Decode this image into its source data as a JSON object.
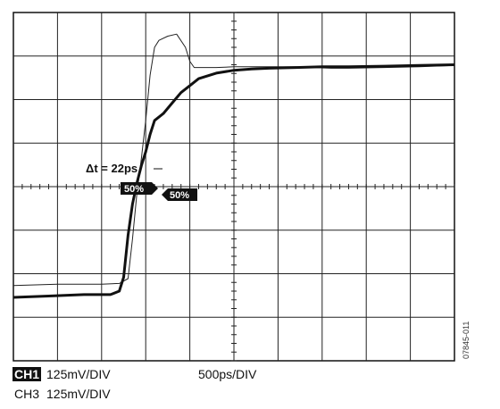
{
  "chart_data": {
    "type": "line",
    "title": "",
    "xlabel": "",
    "ylabel": "",
    "divisions": {
      "x": 10,
      "y": 8
    },
    "grid": true,
    "x_unit": "ps",
    "y_unit": "mV",
    "xlim": [
      0,
      5000
    ],
    "ylim": [
      -500,
      500
    ],
    "series": [
      {
        "name": "CH3",
        "style": "thin",
        "color": "#222222",
        "points": [
          [
            0,
            -284
          ],
          [
            500,
            -280
          ],
          [
            1000,
            -280
          ],
          [
            1200,
            -278
          ],
          [
            1300,
            -264
          ],
          [
            1350,
            -150
          ],
          [
            1400,
            -20
          ],
          [
            1450,
            80
          ],
          [
            1500,
            190
          ],
          [
            1550,
            320
          ],
          [
            1600,
            400
          ],
          [
            1650,
            420
          ],
          [
            1750,
            432
          ],
          [
            1850,
            438
          ],
          [
            1950,
            400
          ],
          [
            2000,
            360
          ],
          [
            2050,
            342
          ],
          [
            2150,
            342
          ],
          [
            2300,
            342
          ],
          [
            2500,
            344
          ],
          [
            2700,
            344
          ],
          [
            3000,
            344
          ],
          [
            3200,
            344
          ],
          [
            3400,
            342
          ],
          [
            3600,
            340
          ],
          [
            3800,
            340
          ],
          [
            4200,
            342
          ],
          [
            4600,
            344
          ],
          [
            5000,
            348
          ]
        ]
      },
      {
        "name": "CH1",
        "style": "thick",
        "color": "#111111",
        "points": [
          [
            0,
            -318
          ],
          [
            400,
            -314
          ],
          [
            800,
            -310
          ],
          [
            1100,
            -310
          ],
          [
            1200,
            -300
          ],
          [
            1250,
            -260
          ],
          [
            1300,
            -140
          ],
          [
            1350,
            -50
          ],
          [
            1400,
            10
          ],
          [
            1450,
            60
          ],
          [
            1500,
            100
          ],
          [
            1550,
            150
          ],
          [
            1600,
            190
          ],
          [
            1700,
            210
          ],
          [
            1800,
            240
          ],
          [
            1900,
            270
          ],
          [
            2000,
            290
          ],
          [
            2100,
            310
          ],
          [
            2300,
            326
          ],
          [
            2500,
            334
          ],
          [
            2700,
            338
          ],
          [
            2900,
            340
          ],
          [
            3200,
            342
          ],
          [
            3500,
            344
          ],
          [
            3800,
            344
          ],
          [
            4200,
            346
          ],
          [
            4600,
            348
          ],
          [
            5000,
            350
          ]
        ]
      }
    ],
    "annotations": {
      "delta_label": "Δt = 22ps",
      "marker_left": "50%",
      "marker_right": "50%"
    }
  },
  "footer": {
    "rows": [
      {
        "channel": "CH1",
        "scale": "125mV/DIV",
        "inverted": true
      },
      {
        "channel": "CH3",
        "scale": "125mV/DIV",
        "inverted": false
      }
    ],
    "timebase": "500ps/DIV"
  },
  "figure_id": "07845-011"
}
